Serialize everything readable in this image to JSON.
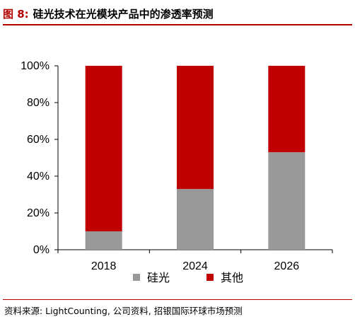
{
  "figure": {
    "label": "图 8:",
    "title": "硅光技术在光模块产品中的渗透率预测"
  },
  "source": "资料来源: LightCounting, 公司资料, 招银国际环球市场预测",
  "chart_data": {
    "type": "bar",
    "stacked": true,
    "categories": [
      "2018",
      "2024",
      "2026"
    ],
    "series": [
      {
        "name": "硅光",
        "color": "#999999",
        "values": [
          10,
          33,
          53
        ]
      },
      {
        "name": "其他",
        "color": "#c00000",
        "values": [
          90,
          67,
          47
        ]
      }
    ],
    "ylim": [
      0,
      100
    ],
    "yticks": [
      "0%",
      "20%",
      "40%",
      "60%",
      "80%",
      "100%"
    ],
    "grid": false,
    "legend": "bottom"
  }
}
